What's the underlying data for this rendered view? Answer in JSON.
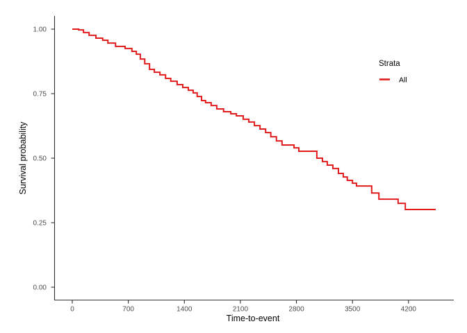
{
  "chart_data": {
    "type": "line",
    "subtype": "kaplan-meier-step-curve",
    "title": "",
    "xlabel": "Time-to-event",
    "ylabel": "Survival probability",
    "xlim": [
      0,
      4540
    ],
    "ylim": [
      0,
      1
    ],
    "x_ticks": [
      0,
      700,
      1400,
      2100,
      2800,
      3500,
      4200
    ],
    "y_ticks": [
      {
        "value": 0.0,
        "label": "0.00"
      },
      {
        "value": 0.25,
        "label": "0.25"
      },
      {
        "value": 0.5,
        "label": "0.50"
      },
      {
        "value": 0.75,
        "label": "0.75"
      },
      {
        "value": 1.0,
        "label": "1.00"
      }
    ],
    "grid": false,
    "legend": {
      "title": "Strata",
      "position": "right",
      "entries": [
        {
          "label": "All",
          "color": "#E31A1C"
        }
      ]
    },
    "series": [
      {
        "name": "All",
        "color": "#E31A1C",
        "step": true,
        "points": [
          [
            0,
            1.0
          ],
          [
            80,
            0.997
          ],
          [
            140,
            0.987
          ],
          [
            210,
            0.976
          ],
          [
            295,
            0.965
          ],
          [
            380,
            0.957
          ],
          [
            445,
            0.946
          ],
          [
            540,
            0.933
          ],
          [
            660,
            0.925
          ],
          [
            745,
            0.914
          ],
          [
            800,
            0.903
          ],
          [
            850,
            0.884
          ],
          [
            905,
            0.866
          ],
          [
            965,
            0.844
          ],
          [
            1025,
            0.833
          ],
          [
            1095,
            0.823
          ],
          [
            1165,
            0.809
          ],
          [
            1230,
            0.798
          ],
          [
            1310,
            0.785
          ],
          [
            1380,
            0.774
          ],
          [
            1450,
            0.763
          ],
          [
            1510,
            0.753
          ],
          [
            1560,
            0.739
          ],
          [
            1615,
            0.723
          ],
          [
            1665,
            0.715
          ],
          [
            1735,
            0.704
          ],
          [
            1805,
            0.691
          ],
          [
            1890,
            0.68
          ],
          [
            1980,
            0.672
          ],
          [
            2050,
            0.664
          ],
          [
            2135,
            0.651
          ],
          [
            2205,
            0.64
          ],
          [
            2275,
            0.626
          ],
          [
            2345,
            0.613
          ],
          [
            2415,
            0.599
          ],
          [
            2480,
            0.583
          ],
          [
            2550,
            0.567
          ],
          [
            2620,
            0.551
          ],
          [
            2770,
            0.54
          ],
          [
            2830,
            0.527
          ],
          [
            3055,
            0.5
          ],
          [
            3125,
            0.487
          ],
          [
            3185,
            0.473
          ],
          [
            3255,
            0.46
          ],
          [
            3325,
            0.441
          ],
          [
            3385,
            0.427
          ],
          [
            3435,
            0.414
          ],
          [
            3500,
            0.403
          ],
          [
            3550,
            0.392
          ],
          [
            3740,
            0.365
          ],
          [
            3830,
            0.341
          ],
          [
            4070,
            0.325
          ],
          [
            4160,
            0.301
          ],
          [
            4540,
            0.301
          ]
        ]
      }
    ]
  }
}
